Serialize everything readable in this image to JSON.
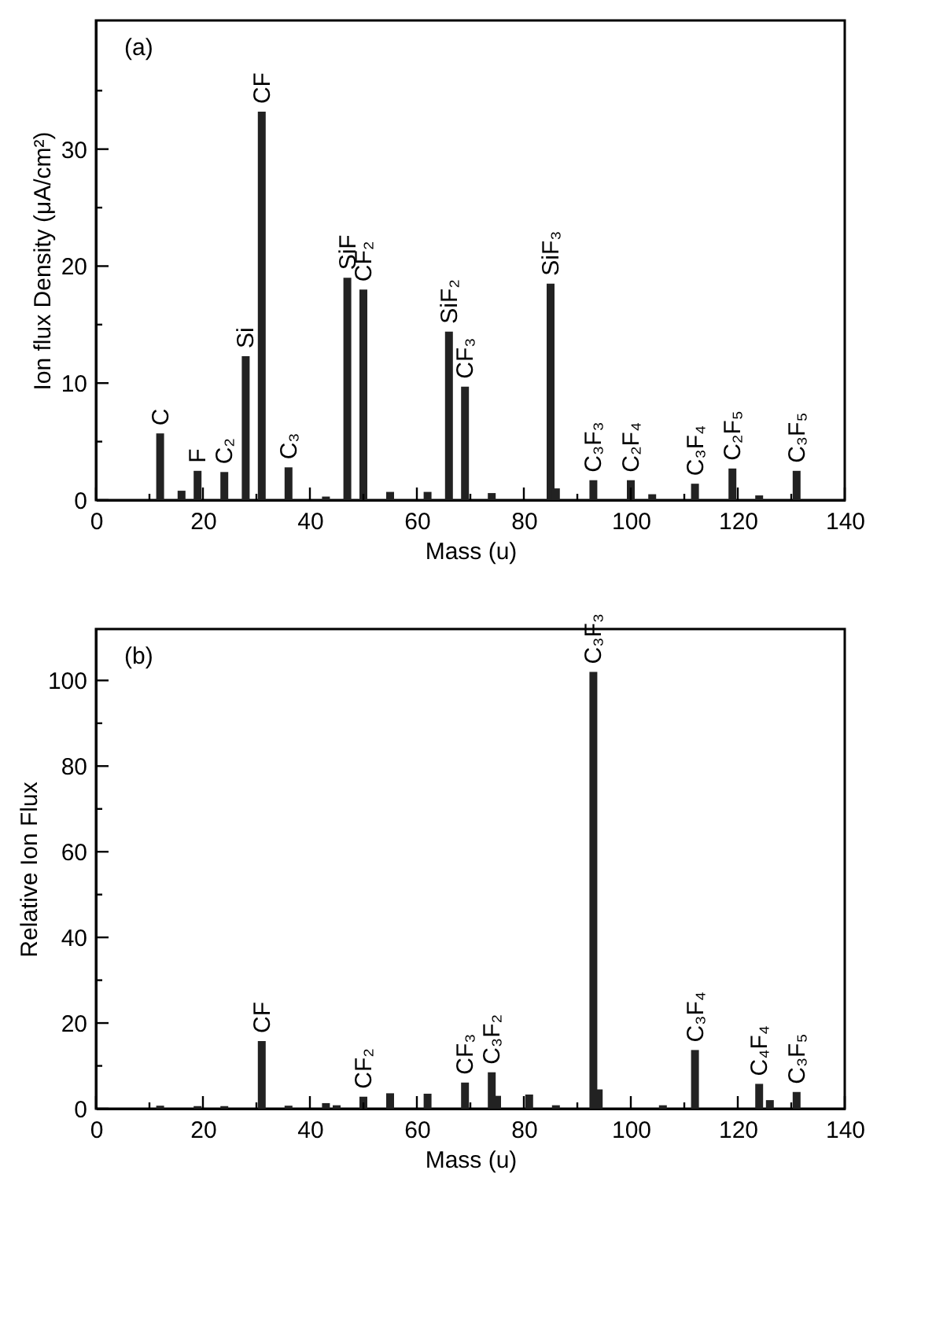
{
  "chart_data": [
    {
      "type": "bar",
      "color": "#222222",
      "grid": false,
      "xlabel": "Mass (u)",
      "ylabel": "Ion flux Density (μA/cm²)",
      "x": [
        12,
        16,
        19,
        24,
        28,
        31,
        36,
        43,
        47,
        50,
        55,
        62,
        66,
        69,
        74,
        85,
        86,
        93,
        100,
        104,
        112,
        119,
        124,
        131
      ],
      "values": [
        5.7,
        0.8,
        2.5,
        2.4,
        12.3,
        33.2,
        2.8,
        0.3,
        19.0,
        18.0,
        0.7,
        0.7,
        14.4,
        9.7,
        0.6,
        18.5,
        1.0,
        1.7,
        1.7,
        0.5,
        1.4,
        2.7,
        0.4,
        2.5
      ],
      "xlim": [
        0,
        140
      ],
      "ylim": [
        0,
        41
      ],
      "xticks": [
        0,
        {
          "value": 10,
          "label": null
        },
        20,
        {
          "value": 30,
          "label": null
        },
        40,
        {
          "value": 50,
          "label": null
        },
        60,
        {
          "value": 70,
          "label": null
        },
        80,
        {
          "value": 90,
          "label": null
        },
        100,
        {
          "value": 110,
          "label": null
        },
        120,
        {
          "value": 130,
          "label": null
        },
        140
      ],
      "yticks": [
        0,
        {
          "value": 5,
          "label": null
        },
        10,
        {
          "value": 15,
          "label": null
        },
        20,
        {
          "value": 25,
          "label": null
        },
        30,
        {
          "value": 35,
          "label": null
        }
      ],
      "annotations": [
        "(a)",
        {
          "text": "C",
          "x": 12,
          "y": 5.7
        },
        {
          "text": "F",
          "x": 19,
          "y": 2.5
        },
        {
          "text": "C₂",
          "x": 24,
          "y": 2.4
        },
        {
          "text": "Si",
          "x": 28,
          "y": 12.3
        },
        {
          "text": "CF",
          "x": 31,
          "y": 33.2
        },
        {
          "text": "C₃",
          "x": 36,
          "y": 2.8
        },
        {
          "text": "SiF",
          "x": 47,
          "y": 19.0
        },
        {
          "text": "CF₂",
          "x": 50,
          "y": 18.0
        },
        {
          "text": "SiF₂",
          "x": 66,
          "y": 14.4
        },
        {
          "text": "CF₃",
          "x": 69,
          "y": 9.7
        },
        {
          "text": "SiF₃",
          "x": 85,
          "y": 18.5
        },
        {
          "text": "C₃F₃",
          "x": 93,
          "y": 1.7
        },
        {
          "text": "C₂F₄",
          "x": 100,
          "y": 1.7
        },
        {
          "text": "C₃F₄",
          "x": 112,
          "y": 1.4
        },
        {
          "text": "C₂F₅",
          "x": 119,
          "y": 2.7
        },
        {
          "text": "C₃F₅",
          "x": 131,
          "y": 2.5
        }
      ]
    },
    {
      "type": "bar",
      "color": "#222222",
      "grid": false,
      "xlabel": "Mass (u)",
      "ylabel": "Relative Ion Flux",
      "x": [
        12,
        19,
        24,
        31,
        36,
        43,
        45,
        50,
        55,
        62,
        69,
        74,
        75,
        81,
        86,
        93,
        94,
        106,
        112,
        124,
        126,
        131
      ],
      "values": [
        0.7,
        0.6,
        0.6,
        15.8,
        0.7,
        1.3,
        0.8,
        2.8,
        3.6,
        3.5,
        6.1,
        8.5,
        3.0,
        3.3,
        0.8,
        102,
        4.5,
        0.8,
        13.7,
        5.8,
        2.0,
        3.9
      ],
      "xlim": [
        0,
        140
      ],
      "ylim": [
        0,
        112
      ],
      "xticks": [
        0,
        {
          "value": 10,
          "label": null
        },
        20,
        {
          "value": 30,
          "label": null
        },
        40,
        {
          "value": 50,
          "label": null
        },
        60,
        {
          "value": 70,
          "label": null
        },
        80,
        {
          "value": 90,
          "label": null
        },
        100,
        {
          "value": 110,
          "label": null
        },
        120,
        {
          "value": 130,
          "label": null
        },
        140
      ],
      "yticks": [
        0,
        {
          "value": 10,
          "label": null
        },
        20,
        {
          "value": 30,
          "label": null
        },
        40,
        {
          "value": 50,
          "label": null
        },
        60,
        {
          "value": 70,
          "label": null
        },
        80,
        {
          "value": 90,
          "label": null
        },
        100
      ],
      "annotations": [
        "(b)",
        {
          "text": "CF",
          "x": 31,
          "y": 15.8
        },
        {
          "text": "CF₂",
          "x": 50,
          "y": 2.8
        },
        {
          "text": "CF₃",
          "x": 69,
          "y": 6.1
        },
        {
          "text": "C₃F₂",
          "x": 74,
          "y": 8.5
        },
        {
          "text": "C₃F₃",
          "x": 93,
          "y": 102
        },
        {
          "text": "C₃F₄",
          "x": 112,
          "y": 13.7
        },
        {
          "text": "C₄F₄",
          "x": 124,
          "y": 5.8
        },
        {
          "text": "C₃F₅",
          "x": 131,
          "y": 3.9
        }
      ]
    }
  ]
}
